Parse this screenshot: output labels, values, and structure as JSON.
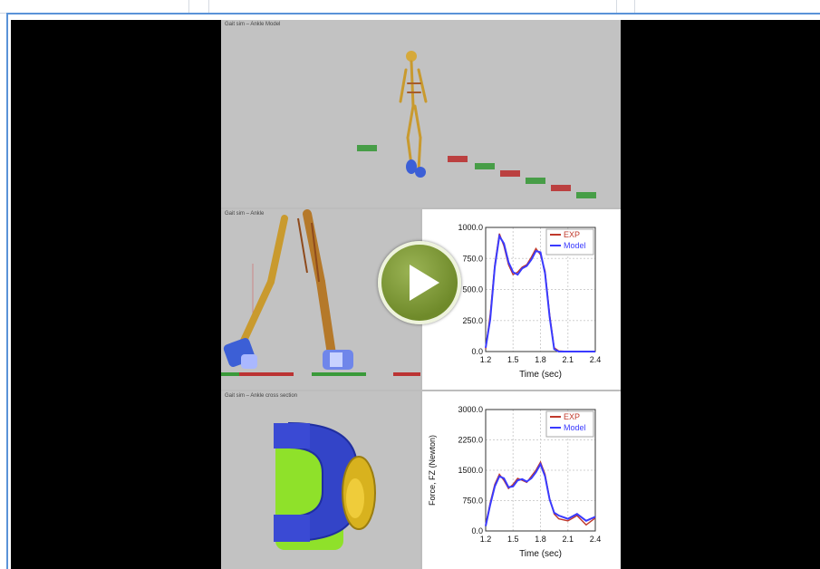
{
  "video": {
    "panels": {
      "top_title": "Gait sim – Ankle Model",
      "mid_title": "Gait sim – Ankle",
      "bottom_title": "Gait sim – Ankle cross section"
    }
  },
  "play_button": {
    "icon": "play-icon",
    "color": "#7a9632"
  },
  "colors": {
    "exp": "#c0392b",
    "model": "#3a3aff"
  },
  "chart_data": [
    {
      "type": "line",
      "title": "",
      "xlabel": "Time (sec)",
      "ylabel": "",
      "xlim": [
        1.2,
        2.4
      ],
      "ylim": [
        0,
        1000
      ],
      "xticks": [
        "1.2",
        "1.5",
        "1.8",
        "2.1",
        "2.4"
      ],
      "yticks": [
        "0.0",
        "250.0",
        "500.0",
        "750.0",
        "1000.0"
      ],
      "legend": "top-right",
      "series": [
        {
          "name": "EXP",
          "x": [
            1.2,
            1.25,
            1.3,
            1.35,
            1.4,
            1.45,
            1.5,
            1.55,
            1.6,
            1.65,
            1.7,
            1.75,
            1.8,
            1.85,
            1.9,
            1.95,
            2.0,
            2.1,
            2.2,
            2.3,
            2.4
          ],
          "y": [
            20,
            300,
            700,
            950,
            850,
            700,
            620,
            640,
            680,
            700,
            760,
            830,
            780,
            650,
            300,
            30,
            5,
            0,
            0,
            0,
            0
          ]
        },
        {
          "name": "Model",
          "x": [
            1.2,
            1.25,
            1.3,
            1.35,
            1.4,
            1.45,
            1.5,
            1.55,
            1.6,
            1.65,
            1.7,
            1.75,
            1.8,
            1.85,
            1.9,
            1.95,
            2.0,
            2.1,
            2.2,
            2.3,
            2.4
          ],
          "y": [
            30,
            260,
            680,
            930,
            870,
            720,
            640,
            620,
            670,
            690,
            740,
            810,
            800,
            630,
            280,
            20,
            0,
            0,
            0,
            0,
            0
          ]
        }
      ]
    },
    {
      "type": "line",
      "title": "",
      "xlabel": "Time (sec)",
      "ylabel": "Force, FZ (Newton)",
      "xlim": [
        1.2,
        2.4
      ],
      "ylim": [
        0,
        3000
      ],
      "xticks": [
        "1.2",
        "1.5",
        "1.8",
        "2.1",
        "2.4"
      ],
      "yticks": [
        "0.0",
        "750.0",
        "1500.0",
        "2250.0",
        "3000.0"
      ],
      "legend": "top-right",
      "series": [
        {
          "name": "EXP",
          "x": [
            1.2,
            1.25,
            1.3,
            1.35,
            1.4,
            1.45,
            1.5,
            1.55,
            1.6,
            1.65,
            1.7,
            1.75,
            1.8,
            1.85,
            1.9,
            1.95,
            2.0,
            2.1,
            2.2,
            2.3,
            2.4
          ],
          "y": [
            150,
            700,
            1150,
            1400,
            1250,
            1050,
            1150,
            1300,
            1250,
            1200,
            1350,
            1500,
            1700,
            1400,
            800,
            420,
            300,
            250,
            380,
            150,
            320
          ]
        },
        {
          "name": "Model",
          "x": [
            1.2,
            1.25,
            1.3,
            1.35,
            1.4,
            1.45,
            1.5,
            1.55,
            1.6,
            1.65,
            1.7,
            1.75,
            1.8,
            1.85,
            1.9,
            1.95,
            2.0,
            2.1,
            2.2,
            2.3,
            2.4
          ],
          "y": [
            120,
            650,
            1100,
            1350,
            1300,
            1080,
            1100,
            1250,
            1280,
            1220,
            1300,
            1450,
            1650,
            1350,
            780,
            450,
            380,
            300,
            420,
            250,
            350
          ]
        }
      ]
    }
  ]
}
